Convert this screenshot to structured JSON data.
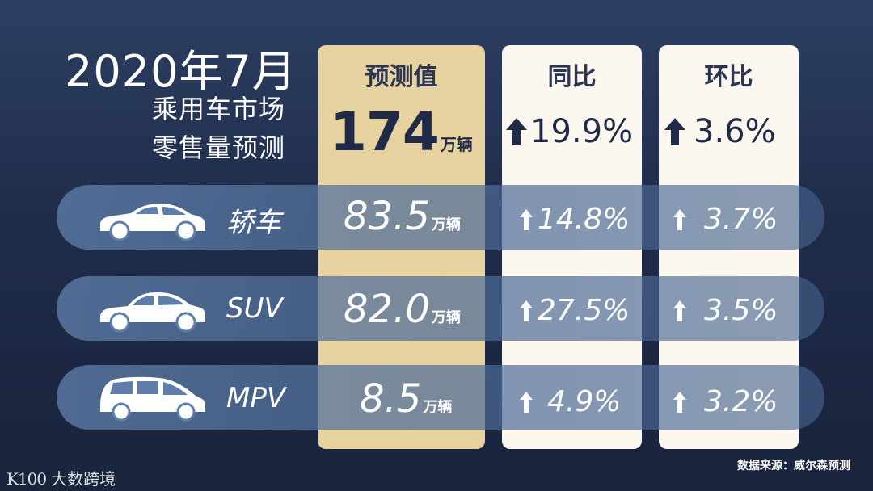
{
  "title": {
    "line1": "2020年7月",
    "line2": "乘用车市场",
    "line3": "零售量预测"
  },
  "columns": {
    "forecast": "预测值",
    "yoy": "同比",
    "mom": "环比"
  },
  "total": {
    "forecast_value": "174",
    "forecast_unit": "万辆",
    "yoy": "19.9%",
    "mom": "3.6%"
  },
  "rows": [
    {
      "label": "轿车",
      "icon": "sedan-icon",
      "value": "83.5",
      "unit": "万辆",
      "yoy": "14.8%",
      "mom": "3.7%"
    },
    {
      "label": "SUV",
      "icon": "suv-icon",
      "value": "82.0",
      "unit": "万辆",
      "yoy": "27.5%",
      "mom": "3.5%"
    },
    {
      "label": "MPV",
      "icon": "mpv-icon",
      "value": "8.5",
      "unit": "万辆",
      "yoy": "4.9%",
      "mom": "3.2%"
    }
  ],
  "source": "数据来源：威尔森预测",
  "brand": {
    "mark": "K100",
    "name": "大数跨境"
  },
  "colors": {
    "background": "#1f2c49",
    "forecast_column": "#e7d39f",
    "rate_column": "#fdf8ef",
    "dark_text": "#1f2a48"
  }
}
